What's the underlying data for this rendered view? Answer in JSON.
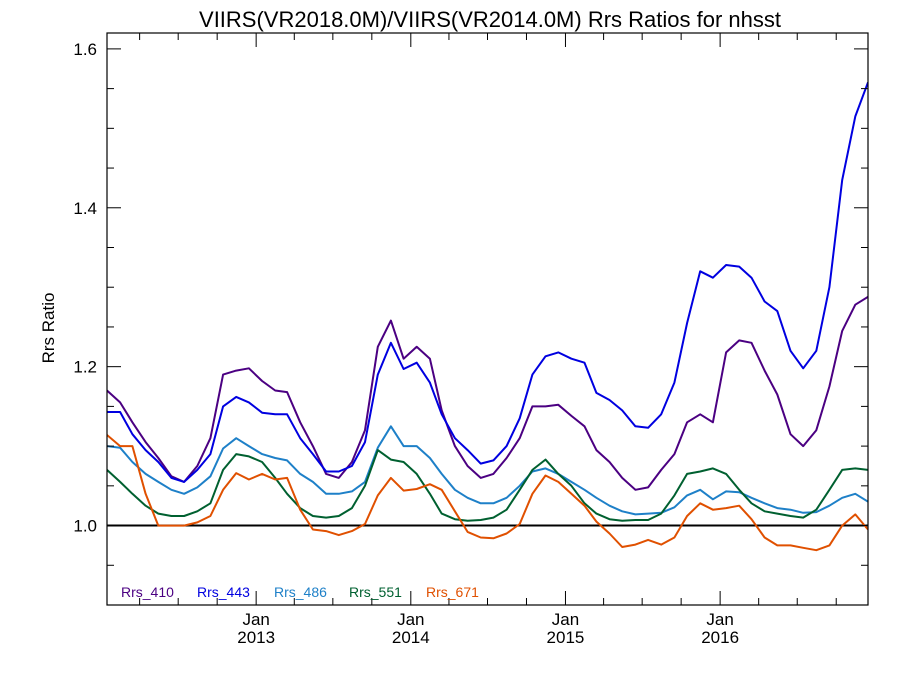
{
  "chart_data": {
    "type": "line",
    "title": "VIIRS(VR2018.0M)/VIIRS(VR2014.0M)  Rrs Ratios for nhsst",
    "xlabel": "",
    "ylabel": "Rrs Ratio",
    "xlim": [
      "2012-01-15",
      "2016-12-15"
    ],
    "ylim": [
      0.9,
      1.62
    ],
    "reference_line": 1.0,
    "x_ticks": [
      {
        "month": "Jan",
        "year": "2013",
        "date": "2013-01-01"
      },
      {
        "month": "Jan",
        "year": "2014",
        "date": "2014-01-01"
      },
      {
        "month": "Jan",
        "year": "2015",
        "date": "2015-01-01"
      },
      {
        "month": "Jan",
        "year": "2016",
        "date": "2016-01-01"
      }
    ],
    "y_ticks": [
      "1.0",
      "1.2",
      "1.4",
      "1.6"
    ],
    "y_tick_values": [
      1.0,
      1.2,
      1.4,
      1.6
    ],
    "x": [
      "2012-01-15",
      "2012-02-15",
      "2012-03-15",
      "2012-04-15",
      "2012-05-15",
      "2012-06-15",
      "2012-07-15",
      "2012-08-15",
      "2012-09-15",
      "2012-10-15",
      "2012-11-15",
      "2012-12-15",
      "2013-01-15",
      "2013-02-15",
      "2013-03-15",
      "2013-04-15",
      "2013-05-15",
      "2013-06-15",
      "2013-07-15",
      "2013-08-15",
      "2013-09-15",
      "2013-10-15",
      "2013-11-15",
      "2013-12-15",
      "2014-01-15",
      "2014-02-15",
      "2014-03-15",
      "2014-04-15",
      "2014-05-15",
      "2014-06-15",
      "2014-07-15",
      "2014-08-15",
      "2014-09-15",
      "2014-10-15",
      "2014-11-15",
      "2014-12-15",
      "2015-01-15",
      "2015-02-15",
      "2015-03-15",
      "2015-04-15",
      "2015-05-15",
      "2015-06-15",
      "2015-07-15",
      "2015-08-15",
      "2015-09-15",
      "2015-10-15",
      "2015-11-15",
      "2015-12-15",
      "2016-01-15",
      "2016-02-15",
      "2016-03-15",
      "2016-04-15",
      "2016-05-15",
      "2016-06-15",
      "2016-07-15",
      "2016-08-15",
      "2016-09-15",
      "2016-10-15",
      "2016-11-15",
      "2016-12-15"
    ],
    "series": [
      {
        "name": "Rrs_410",
        "color": "#4b0082",
        "values": [
          1.17,
          1.155,
          1.13,
          1.105,
          1.085,
          1.062,
          1.055,
          1.075,
          1.11,
          1.19,
          1.195,
          1.198,
          1.182,
          1.17,
          1.168,
          1.13,
          1.1,
          1.065,
          1.06,
          1.08,
          1.12,
          1.225,
          1.258,
          1.21,
          1.225,
          1.21,
          1.145,
          1.1,
          1.075,
          1.06,
          1.065,
          1.085,
          1.11,
          1.15,
          1.15,
          1.152,
          1.138,
          1.125,
          1.095,
          1.08,
          1.06,
          1.045,
          1.048,
          1.07,
          1.09,
          1.13,
          1.14,
          1.13,
          1.218,
          1.233,
          1.23,
          1.195,
          1.165,
          1.115,
          1.1,
          1.12,
          1.175,
          1.245,
          1.278,
          1.288
        ]
      },
      {
        "name": "Rrs_443",
        "color": "#0000e0",
        "values": [
          1.143,
          1.143,
          1.115,
          1.095,
          1.08,
          1.06,
          1.055,
          1.07,
          1.09,
          1.15,
          1.162,
          1.155,
          1.142,
          1.14,
          1.14,
          1.11,
          1.09,
          1.068,
          1.068,
          1.075,
          1.105,
          1.19,
          1.23,
          1.197,
          1.205,
          1.18,
          1.14,
          1.11,
          1.095,
          1.078,
          1.082,
          1.1,
          1.135,
          1.19,
          1.213,
          1.218,
          1.21,
          1.205,
          1.167,
          1.158,
          1.145,
          1.125,
          1.123,
          1.14,
          1.18,
          1.255,
          1.32,
          1.312,
          1.328,
          1.326,
          1.312,
          1.282,
          1.27,
          1.22,
          1.198,
          1.22,
          1.3,
          1.435,
          1.515,
          1.558
        ]
      },
      {
        "name": "Rrs_486",
        "color": "#1e80c8",
        "values": [
          1.1,
          1.098,
          1.08,
          1.065,
          1.055,
          1.045,
          1.04,
          1.048,
          1.062,
          1.097,
          1.11,
          1.1,
          1.09,
          1.085,
          1.082,
          1.065,
          1.055,
          1.04,
          1.04,
          1.043,
          1.055,
          1.098,
          1.125,
          1.1,
          1.1,
          1.085,
          1.065,
          1.045,
          1.035,
          1.028,
          1.028,
          1.035,
          1.05,
          1.068,
          1.072,
          1.065,
          1.055,
          1.045,
          1.035,
          1.025,
          1.018,
          1.014,
          1.015,
          1.016,
          1.023,
          1.038,
          1.045,
          1.033,
          1.043,
          1.042,
          1.035,
          1.028,
          1.022,
          1.02,
          1.016,
          1.017,
          1.025,
          1.035,
          1.04,
          1.03
        ]
      },
      {
        "name": "Rrs_551",
        "color": "#006030",
        "values": [
          1.07,
          1.055,
          1.04,
          1.025,
          1.015,
          1.012,
          1.012,
          1.018,
          1.028,
          1.07,
          1.09,
          1.087,
          1.08,
          1.06,
          1.04,
          1.022,
          1.012,
          1.01,
          1.012,
          1.022,
          1.05,
          1.095,
          1.083,
          1.08,
          1.065,
          1.04,
          1.015,
          1.008,
          1.006,
          1.007,
          1.01,
          1.02,
          1.045,
          1.07,
          1.083,
          1.065,
          1.05,
          1.028,
          1.015,
          1.008,
          1.006,
          1.007,
          1.007,
          1.015,
          1.038,
          1.065,
          1.068,
          1.072,
          1.065,
          1.045,
          1.028,
          1.018,
          1.015,
          1.012,
          1.01,
          1.02,
          1.045,
          1.07,
          1.072,
          1.07
        ]
      },
      {
        "name": "Rrs_671",
        "color": "#e05000",
        "values": [
          1.114,
          1.1,
          1.1,
          1.04,
          1.0,
          1.0,
          1.0,
          1.004,
          1.012,
          1.045,
          1.066,
          1.058,
          1.065,
          1.058,
          1.06,
          1.02,
          0.995,
          0.993,
          0.988,
          0.993,
          1.002,
          1.038,
          1.06,
          1.044,
          1.046,
          1.052,
          1.045,
          1.018,
          0.992,
          0.985,
          0.984,
          0.99,
          1.002,
          1.04,
          1.063,
          1.055,
          1.04,
          1.025,
          1.005,
          0.99,
          0.973,
          0.976,
          0.982,
          0.976,
          0.985,
          1.012,
          1.028,
          1.02,
          1.022,
          1.025,
          1.008,
          0.985,
          0.975,
          0.975,
          0.972,
          0.969,
          0.975,
          1.0,
          1.014,
          0.995
        ]
      }
    ],
    "legend_position": "bottom-left"
  }
}
